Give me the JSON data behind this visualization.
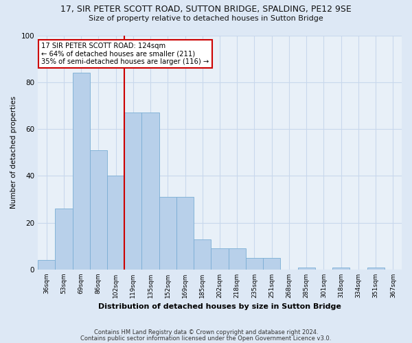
{
  "title1": "17, SIR PETER SCOTT ROAD, SUTTON BRIDGE, SPALDING, PE12 9SE",
  "title2": "Size of property relative to detached houses in Sutton Bridge",
  "xlabel": "Distribution of detached houses by size in Sutton Bridge",
  "ylabel": "Number of detached properties",
  "categories": [
    "36sqm",
    "53sqm",
    "69sqm",
    "86sqm",
    "102sqm",
    "119sqm",
    "135sqm",
    "152sqm",
    "169sqm",
    "185sqm",
    "202sqm",
    "218sqm",
    "235sqm",
    "251sqm",
    "268sqm",
    "285sqm",
    "301sqm",
    "318sqm",
    "334sqm",
    "351sqm",
    "367sqm"
  ],
  "bar_values": [
    4,
    26,
    84,
    51,
    40,
    67,
    67,
    31,
    31,
    13,
    9,
    9,
    5,
    5,
    0,
    1,
    0,
    1,
    0,
    1,
    0
  ],
  "bar_color": "#b8d0ea",
  "bar_edge_color": "#7aadd4",
  "ref_line_index": 5,
  "ref_line_color": "#cc0000",
  "annotation_text": "17 SIR PETER SCOTT ROAD: 124sqm\n← 64% of detached houses are smaller (211)\n35% of semi-detached houses are larger (116) →",
  "annotation_box_color": "white",
  "annotation_box_edge": "#cc0000",
  "ylim": [
    0,
    100
  ],
  "yticks": [
    0,
    20,
    40,
    60,
    80,
    100
  ],
  "footer1": "Contains HM Land Registry data © Crown copyright and database right 2024.",
  "footer2": "Contains public sector information licensed under the Open Government Licence v3.0.",
  "bg_color": "#dde8f5",
  "plot_bg_color": "#e8f0f8",
  "grid_color": "#c8d8ec"
}
